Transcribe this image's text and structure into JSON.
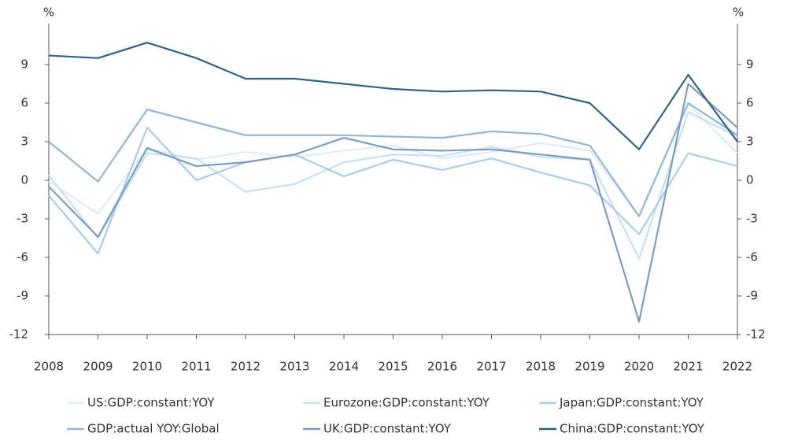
{
  "chart_data": {
    "type": "line",
    "y_label": "%",
    "y2_label": "%",
    "categories": [
      "2008",
      "2009",
      "2010",
      "2011",
      "2012",
      "2013",
      "2014",
      "2015",
      "2016",
      "2017",
      "2018",
      "2019",
      "2020",
      "2021",
      "2022"
    ],
    "series": [
      {
        "name": "US:GDP:constant:YOY",
        "color": "#dcedf8",
        "values": [
          -0.1,
          -2.6,
          2.5,
          1.6,
          2.2,
          1.8,
          2.3,
          2.7,
          1.7,
          2.2,
          2.9,
          2.3,
          -2.8,
          5.9,
          2.1
        ]
      },
      {
        "name": "Eurozone:GDP:constant:YOY",
        "color": "#c3e2f3",
        "values": [
          0.4,
          -4.5,
          2.1,
          1.7,
          -0.9,
          -0.3,
          1.4,
          2.0,
          1.9,
          2.6,
          1.8,
          1.6,
          -6.1,
          5.3,
          3.4
        ]
      },
      {
        "name": "Japan:GDP:constant:YOY",
        "color": "#a9cbe7",
        "values": [
          -1.2,
          -5.7,
          4.1,
          0.0,
          1.4,
          2.0,
          0.3,
          1.6,
          0.8,
          1.7,
          0.6,
          -0.4,
          -4.2,
          2.1,
          1.1
        ]
      },
      {
        "name": "GDP:actual YOY:Global",
        "color": "#93b3d7",
        "values": [
          3.0,
          -0.1,
          5.5,
          4.5,
          3.5,
          3.5,
          3.5,
          3.4,
          3.3,
          3.8,
          3.6,
          2.7,
          -2.8,
          6.0,
          3.5
        ]
      },
      {
        "name": "UK:GDP:constant:YOY",
        "color": "#7b9bc1",
        "values": [
          -0.5,
          -4.4,
          2.5,
          1.1,
          1.4,
          2.0,
          3.3,
          2.4,
          2.3,
          2.4,
          2.0,
          1.6,
          -11.0,
          7.5,
          4.1
        ]
      },
      {
        "name": "China:GDP:constant:YOY",
        "color": "#2f6189",
        "values": [
          9.7,
          9.5,
          10.7,
          9.5,
          7.9,
          7.9,
          7.5,
          7.1,
          6.9,
          7.0,
          6.9,
          6.0,
          2.4,
          8.2,
          3.0
        ]
      }
    ],
    "ylim": [
      -12,
      12
    ],
    "yticks": [
      -12,
      -9,
      -6,
      -3,
      0,
      3,
      6,
      9
    ],
    "y2lim": [
      -12,
      12
    ],
    "y2ticks": [
      -12,
      -9,
      -6,
      -3,
      0,
      3,
      6,
      9
    ]
  }
}
